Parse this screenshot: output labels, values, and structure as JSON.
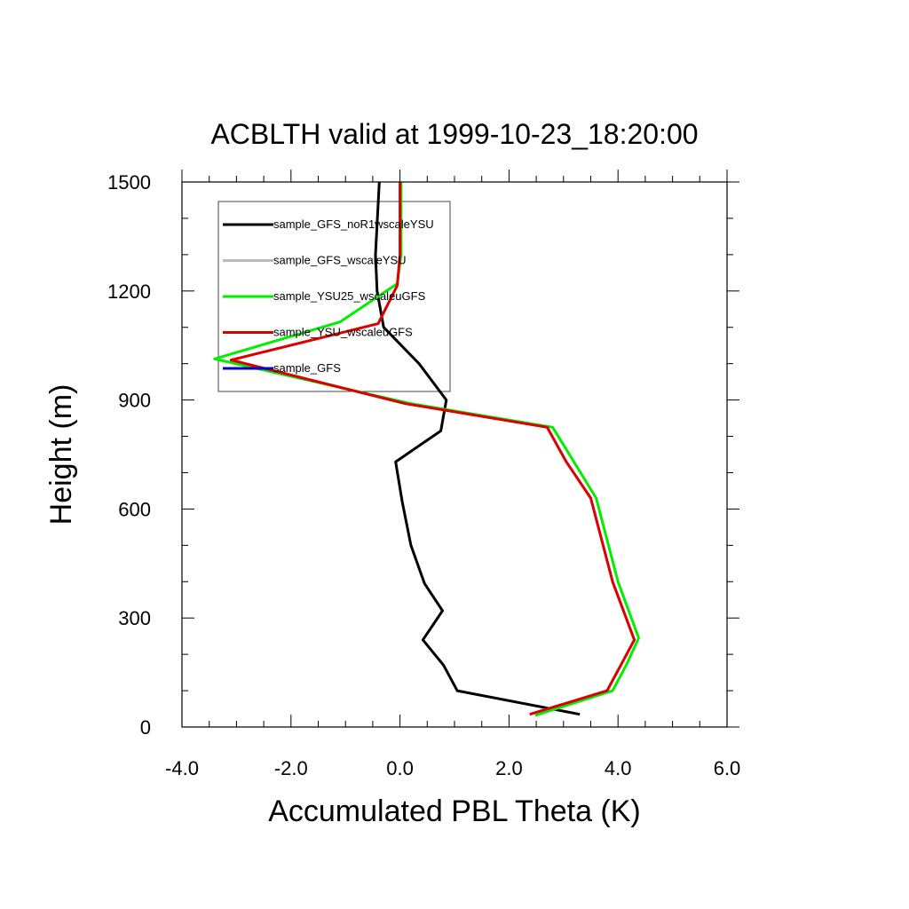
{
  "chart_data": {
    "type": "line",
    "title": "ACBLTH valid at 1999-10-23_18:20:00",
    "xlabel": "Accumulated PBL Theta (K)",
    "ylabel": "Height (m)",
    "xlim": [
      -4.0,
      6.0
    ],
    "ylim": [
      0,
      1500
    ],
    "x_ticks": [
      -4.0,
      -2.0,
      0.0,
      2.0,
      4.0,
      6.0
    ],
    "x_tick_labels": [
      "-4.0",
      "-2.0",
      "0.0",
      "2.0",
      "4.0",
      "6.0"
    ],
    "y_ticks": [
      0,
      300,
      600,
      900,
      1200,
      1500
    ],
    "y_tick_labels": [
      "0",
      "300",
      "600",
      "900",
      "1200",
      "1500"
    ],
    "x_minor_step": 0.5,
    "y_minor_step": 100,
    "grid": false,
    "legend_placement": "top-left",
    "series": [
      {
        "name": "sample_GFS_noR1wscaleYSU",
        "color": "#000000",
        "points": [
          [
            3.3,
            35
          ],
          [
            1.05,
            100
          ],
          [
            0.8,
            170
          ],
          [
            0.42,
            240
          ],
          [
            0.78,
            320
          ],
          [
            0.45,
            395
          ],
          [
            0.2,
            500
          ],
          [
            0.04,
            620
          ],
          [
            -0.08,
            730
          ],
          [
            0.75,
            815
          ],
          [
            0.85,
            900
          ],
          [
            0.35,
            1000
          ],
          [
            -0.3,
            1100
          ],
          [
            -0.42,
            1200
          ],
          [
            -0.45,
            1300
          ],
          [
            -0.38,
            1500
          ]
        ]
      },
      {
        "name": "sample_GFS_wscaleYSU",
        "color": "#bbbbbb",
        "points": [
          [
            2.38,
            35
          ],
          [
            3.8,
            100
          ],
          [
            4.05,
            170
          ],
          [
            4.3,
            240
          ],
          [
            3.9,
            400
          ],
          [
            3.5,
            630
          ],
          [
            3.05,
            730
          ],
          [
            2.7,
            825
          ],
          [
            0.1,
            890
          ],
          [
            -3.1,
            1010
          ],
          [
            -0.4,
            1110
          ],
          [
            -0.05,
            1215
          ],
          [
            0.0,
            1300
          ],
          [
            0.0,
            1500
          ]
        ]
      },
      {
        "name": "sample_YSU25_wscaleuGFS",
        "color": "#00ee00",
        "points": [
          [
            2.48,
            32
          ],
          [
            3.9,
            100
          ],
          [
            4.15,
            170
          ],
          [
            4.38,
            245
          ],
          [
            4.0,
            400
          ],
          [
            3.6,
            630
          ],
          [
            3.15,
            740
          ],
          [
            2.8,
            825
          ],
          [
            0.2,
            890
          ],
          [
            -3.4,
            1013
          ],
          [
            -1.1,
            1115
          ],
          [
            -0.05,
            1220
          ],
          [
            0.02,
            1300
          ],
          [
            0.02,
            1500
          ]
        ]
      },
      {
        "name": "sample_YSU_wscaleuGFS",
        "color": "#dd0000",
        "points": [
          [
            2.38,
            35
          ],
          [
            3.8,
            100
          ],
          [
            4.05,
            170
          ],
          [
            4.3,
            240
          ],
          [
            3.9,
            400
          ],
          [
            3.5,
            630
          ],
          [
            3.05,
            730
          ],
          [
            2.7,
            825
          ],
          [
            0.1,
            890
          ],
          [
            -3.1,
            1010
          ],
          [
            -0.4,
            1110
          ],
          [
            -0.05,
            1215
          ],
          [
            0.0,
            1300
          ],
          [
            0.0,
            1500
          ]
        ]
      },
      {
        "name": "sample_GFS",
        "color": "#0000cc",
        "points": []
      }
    ]
  }
}
